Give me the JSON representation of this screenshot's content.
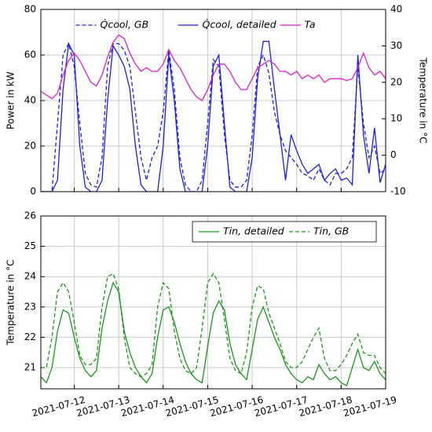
{
  "chart_data": [
    {
      "type": "line",
      "ylabel": "Power in kW",
      "y2label": "Temperature in °C",
      "ylim": [
        0,
        80
      ],
      "yticks": [
        0,
        20,
        40,
        60,
        80
      ],
      "y2lim": [
        -10,
        40
      ],
      "y2ticks": [
        -10,
        0,
        10,
        20,
        30,
        40
      ],
      "xlim": [
        "2021-07-11 06:00",
        "2021-07-19 00:00"
      ],
      "xticks": [
        "2021-07-12",
        "2021-07-13",
        "2021-07-14",
        "2021-07-15",
        "2021-07-16",
        "2021-07-17",
        "2021-07-18",
        "2021-07-19"
      ],
      "grid": true,
      "legend": "upper center",
      "x": [
        "2021-07-11 06:00",
        "2021-07-11 09:00",
        "2021-07-11 12:00",
        "2021-07-11 15:00",
        "2021-07-11 18:00",
        "2021-07-11 21:00",
        "2021-07-12 00:00",
        "2021-07-12 03:00",
        "2021-07-12 06:00",
        "2021-07-12 09:00",
        "2021-07-12 12:00",
        "2021-07-12 15:00",
        "2021-07-12 18:00",
        "2021-07-12 21:00",
        "2021-07-13 00:00",
        "2021-07-13 03:00",
        "2021-07-13 06:00",
        "2021-07-13 09:00",
        "2021-07-13 12:00",
        "2021-07-13 15:00",
        "2021-07-13 18:00",
        "2021-07-13 21:00",
        "2021-07-14 00:00",
        "2021-07-14 03:00",
        "2021-07-14 06:00",
        "2021-07-14 09:00",
        "2021-07-14 12:00",
        "2021-07-14 15:00",
        "2021-07-14 18:00",
        "2021-07-14 21:00",
        "2021-07-15 00:00",
        "2021-07-15 03:00",
        "2021-07-15 06:00",
        "2021-07-15 09:00",
        "2021-07-15 12:00",
        "2021-07-15 15:00",
        "2021-07-15 18:00",
        "2021-07-15 21:00",
        "2021-07-16 00:00",
        "2021-07-16 03:00",
        "2021-07-16 06:00",
        "2021-07-16 09:00",
        "2021-07-16 12:00",
        "2021-07-16 15:00",
        "2021-07-16 18:00",
        "2021-07-16 21:00",
        "2021-07-17 00:00",
        "2021-07-17 03:00",
        "2021-07-17 06:00",
        "2021-07-17 09:00",
        "2021-07-17 12:00",
        "2021-07-17 15:00",
        "2021-07-17 18:00",
        "2021-07-17 21:00",
        "2021-07-18 00:00",
        "2021-07-18 03:00",
        "2021-07-18 06:00",
        "2021-07-18 09:00",
        "2021-07-18 12:00",
        "2021-07-18 15:00",
        "2021-07-18 18:00",
        "2021-07-18 21:00",
        "2021-07-19 00:00"
      ],
      "series": [
        {
          "name": "Q̇cool, GB",
          "color": "#1e1ee0",
          "linestyle": "dashed",
          "values": [
            0,
            0,
            0,
            30,
            60,
            65,
            55,
            30,
            8,
            3,
            2,
            15,
            55,
            65,
            65,
            62,
            55,
            35,
            15,
            5,
            15,
            20,
            35,
            62,
            45,
            15,
            3,
            0,
            0,
            5,
            30,
            58,
            55,
            25,
            5,
            2,
            2,
            5,
            25,
            55,
            60,
            52,
            35,
            25,
            18,
            15,
            12,
            8,
            7,
            5,
            10,
            5,
            3,
            8,
            8,
            10,
            15,
            55,
            30,
            15,
            20,
            8,
            10
          ]
        },
        {
          "name": "Q̇cool, detailed",
          "color": "#1e1ee0",
          "linestyle": "solid",
          "values": [
            0,
            0,
            0,
            5,
            45,
            65,
            60,
            20,
            2,
            0,
            0,
            5,
            40,
            64,
            60,
            55,
            45,
            20,
            3,
            0,
            0,
            0,
            20,
            60,
            40,
            10,
            0,
            0,
            0,
            0,
            20,
            55,
            60,
            30,
            2,
            0,
            0,
            0,
            15,
            50,
            66,
            66,
            45,
            25,
            5,
            25,
            18,
            12,
            8,
            10,
            12,
            5,
            8,
            10,
            5,
            6,
            3,
            60,
            25,
            8,
            28,
            4,
            12
          ]
        },
        {
          "name": "Ta",
          "color": "#e21ec8",
          "linestyle": "solid",
          "axis": "y2",
          "values": [
            17.5,
            16.5,
            15.5,
            17,
            22,
            26,
            28,
            26,
            23,
            20,
            19,
            22,
            27,
            31,
            33,
            32,
            28,
            25,
            23,
            24,
            23,
            23,
            25,
            29,
            26,
            24,
            21,
            18,
            16,
            15,
            18,
            22,
            25,
            25,
            23,
            20,
            18,
            18,
            21,
            24,
            25,
            26,
            25,
            23,
            23,
            22,
            23,
            21,
            22,
            21,
            22,
            20,
            21,
            21,
            21,
            20.5,
            21,
            24,
            28,
            24,
            22,
            23,
            21
          ]
        }
      ]
    },
    {
      "type": "line",
      "ylabel": "Temperature in °C",
      "ylim": [
        20.3,
        26
      ],
      "yticks": [
        21,
        22,
        23,
        24,
        25,
        26
      ],
      "xlim": [
        "2021-07-11 06:00",
        "2021-07-19 00:00"
      ],
      "xticks": [
        "2021-07-12",
        "2021-07-13",
        "2021-07-14",
        "2021-07-15",
        "2021-07-16",
        "2021-07-17",
        "2021-07-18",
        "2021-07-19"
      ],
      "grid": true,
      "legend": "upper right",
      "x": [
        "2021-07-11 06:00",
        "2021-07-11 09:00",
        "2021-07-11 12:00",
        "2021-07-11 15:00",
        "2021-07-11 18:00",
        "2021-07-11 21:00",
        "2021-07-12 00:00",
        "2021-07-12 03:00",
        "2021-07-12 06:00",
        "2021-07-12 09:00",
        "2021-07-12 12:00",
        "2021-07-12 15:00",
        "2021-07-12 18:00",
        "2021-07-12 21:00",
        "2021-07-13 00:00",
        "2021-07-13 03:00",
        "2021-07-13 06:00",
        "2021-07-13 09:00",
        "2021-07-13 12:00",
        "2021-07-13 15:00",
        "2021-07-13 18:00",
        "2021-07-13 21:00",
        "2021-07-14 00:00",
        "2021-07-14 03:00",
        "2021-07-14 06:00",
        "2021-07-14 09:00",
        "2021-07-14 12:00",
        "2021-07-14 15:00",
        "2021-07-14 18:00",
        "2021-07-14 21:00",
        "2021-07-15 00:00",
        "2021-07-15 03:00",
        "2021-07-15 06:00",
        "2021-07-15 09:00",
        "2021-07-15 12:00",
        "2021-07-15 15:00",
        "2021-07-15 18:00",
        "2021-07-15 21:00",
        "2021-07-16 00:00",
        "2021-07-16 03:00",
        "2021-07-16 06:00",
        "2021-07-16 09:00",
        "2021-07-16 12:00",
        "2021-07-16 15:00",
        "2021-07-16 18:00",
        "2021-07-16 21:00",
        "2021-07-17 00:00",
        "2021-07-17 03:00",
        "2021-07-17 06:00",
        "2021-07-17 09:00",
        "2021-07-17 12:00",
        "2021-07-17 15:00",
        "2021-07-17 18:00",
        "2021-07-17 21:00",
        "2021-07-18 00:00",
        "2021-07-18 03:00",
        "2021-07-18 06:00",
        "2021-07-18 09:00",
        "2021-07-18 12:00",
        "2021-07-18 15:00",
        "2021-07-18 18:00",
        "2021-07-18 21:00",
        "2021-07-19 00:00"
      ],
      "series": [
        {
          "name": "Tin, detailed",
          "color": "#1a961a",
          "linestyle": "solid",
          "values": [
            20.7,
            20.5,
            21.0,
            22.2,
            22.9,
            22.8,
            22.0,
            21.3,
            20.9,
            20.7,
            20.9,
            22.3,
            23.2,
            23.8,
            23.5,
            22.2,
            21.5,
            21.0,
            20.7,
            20.5,
            20.8,
            22.0,
            22.9,
            23.0,
            22.5,
            21.8,
            21.2,
            20.8,
            20.6,
            20.5,
            21.7,
            22.8,
            23.2,
            22.9,
            21.8,
            21.1,
            20.8,
            20.6,
            21.6,
            22.6,
            23.0,
            22.5,
            22.0,
            21.6,
            21.1,
            20.8,
            20.6,
            20.5,
            20.7,
            20.6,
            21.1,
            20.8,
            20.6,
            20.7,
            20.5,
            20.4,
            21.0,
            21.6,
            21.0,
            20.9,
            21.2,
            20.8,
            20.6
          ]
        },
        {
          "name": "Tin, GB",
          "color": "#1a961a",
          "linestyle": "dashed",
          "values": [
            21.0,
            21.0,
            22.0,
            23.5,
            23.8,
            23.5,
            22.5,
            21.4,
            21.1,
            21.1,
            21.3,
            23.0,
            24.0,
            24.1,
            23.6,
            22.0,
            21.0,
            20.8,
            20.7,
            20.8,
            21.1,
            23.0,
            23.8,
            23.6,
            22.2,
            21.3,
            20.9,
            20.8,
            21.0,
            22.3,
            23.8,
            24.1,
            23.8,
            22.6,
            21.3,
            20.9,
            20.8,
            21.5,
            23.0,
            23.7,
            23.6,
            22.8,
            22.3,
            21.8,
            21.2,
            21.0,
            21.0,
            21.2,
            21.6,
            22.0,
            22.3,
            21.3,
            20.9,
            20.9,
            21.1,
            21.4,
            21.8,
            22.1,
            21.5,
            21.4,
            21.4,
            21.0,
            20.8
          ]
        }
      ]
    }
  ]
}
